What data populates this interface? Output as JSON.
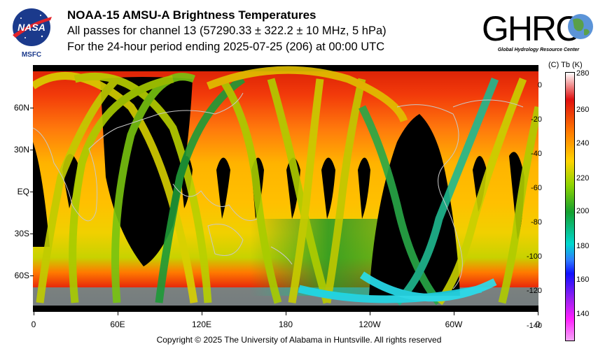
{
  "header": {
    "line1": "NOAA-15 AMSU-A Brightness Temperatures",
    "line2": "All passes for channel 13 (57290.33 ± 322.2 ± 10 MHz, 5 hPa)",
    "line3": "For the 24-hour period ending 2025-07-25 (206) at 00:00 UTC"
  },
  "logos": {
    "nasa_text": "NASA",
    "msfc_text": "MSFC",
    "ghrc_text": "GHRC",
    "ghrc_subtitle": "Global Hydrology Resource Center"
  },
  "map": {
    "lat_labels": [
      "60N",
      "30N",
      "EQ",
      "30S",
      "60S"
    ],
    "lon_labels": [
      "0",
      "60E",
      "120E",
      "180",
      "120W",
      "60W",
      "0"
    ]
  },
  "colorbar": {
    "header": "(C)  Tb  (K)",
    "kelvin_labels": [
      "280",
      "260",
      "240",
      "220",
      "200",
      "180",
      "160",
      "140"
    ],
    "celsius_labels": [
      "0",
      "-20",
      "-40",
      "-60",
      "-80",
      "-100",
      "-120",
      "-140"
    ]
  },
  "footer": {
    "copyright": "Copyright © 2025 The University of Alabama in Huntsville.  All rights reserved"
  },
  "colors": {
    "hot": "#e82a0a",
    "warm": "#ffbf00",
    "mid": "#3ea820",
    "cold": "#20d8e8",
    "no_data": "#000000",
    "coastline": "#c8c8c8"
  }
}
